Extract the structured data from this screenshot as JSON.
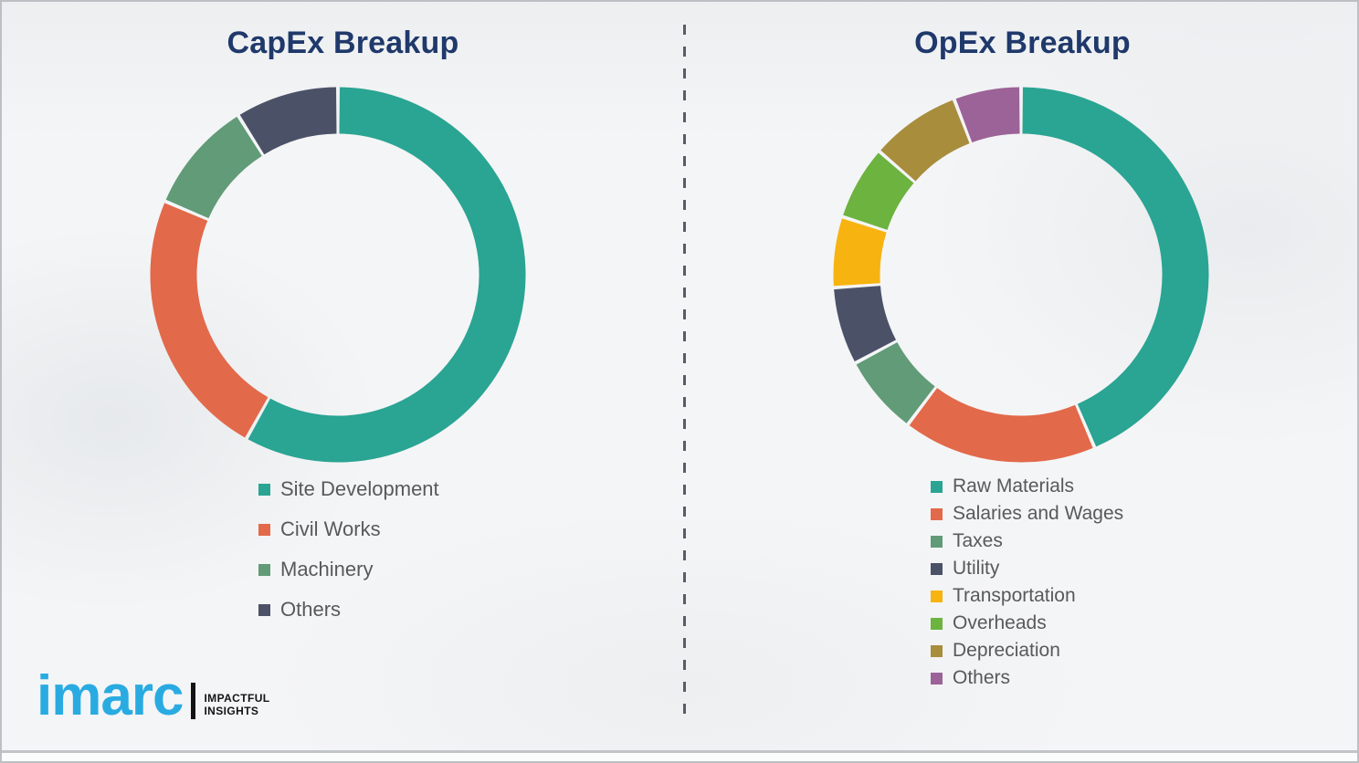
{
  "chart_data": [
    {
      "type": "pie",
      "variant": "donut",
      "title": "CapEx Breakup",
      "legend_position": "below-left",
      "start_angle_deg": 0,
      "direction": "clockwise",
      "values_are": "percent_estimated_from_arc_angles",
      "series": [
        {
          "label": "Site Development",
          "value": 58.1,
          "color": "#2aa493"
        },
        {
          "label": "Civil Works",
          "value": 23.3,
          "color": "#e2694a"
        },
        {
          "label": "Machinery",
          "value": 9.7,
          "color": "#619b77"
        },
        {
          "label": "Others",
          "value": 8.9,
          "color": "#4b5268"
        }
      ]
    },
    {
      "type": "pie",
      "variant": "donut",
      "title": "OpEx Breakup",
      "legend_position": "below-left",
      "start_angle_deg": 0,
      "direction": "clockwise",
      "values_are": "percent_estimated_from_arc_angles",
      "series": [
        {
          "label": "Raw Materials",
          "value": 43.6,
          "color": "#2aa493"
        },
        {
          "label": "Salaries and Wages",
          "value": 16.7,
          "color": "#e2694a"
        },
        {
          "label": "Taxes",
          "value": 6.9,
          "color": "#619b77"
        },
        {
          "label": "Utility",
          "value": 6.7,
          "color": "#4b5268"
        },
        {
          "label": "Transportation",
          "value": 6.1,
          "color": "#f7b310"
        },
        {
          "label": "Overheads",
          "value": 6.4,
          "color": "#6cb33f"
        },
        {
          "label": "Depreciation",
          "value": 7.8,
          "color": "#a88d3c"
        },
        {
          "label": "Others",
          "value": 5.8,
          "color": "#9c6398"
        }
      ]
    }
  ],
  "footer": {
    "logo_text": "imarc",
    "tagline_line1": "IMPACTFUL",
    "tagline_line2": "INSIGHTS"
  },
  "colors": {
    "title_text": "#20396b",
    "legend_text": "#595959",
    "divider": "#585d64",
    "logo_blue": "#29abe2",
    "logo_black": "#141414",
    "background": "#f4f5f6"
  }
}
